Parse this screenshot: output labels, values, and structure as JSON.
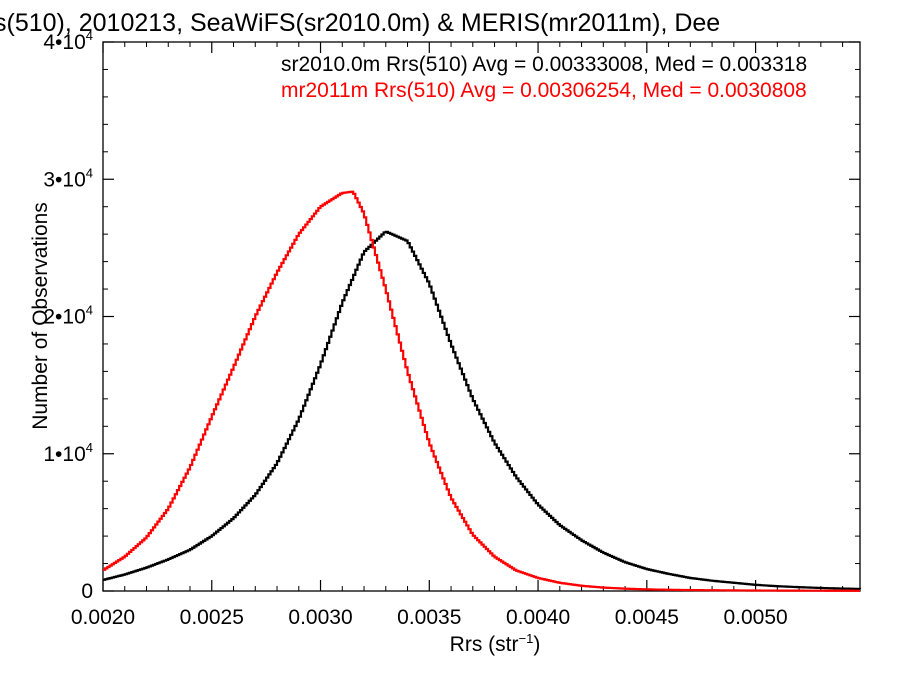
{
  "chart_data": {
    "type": "line",
    "title": "s(510), 2010213, SeaWiFS(sr2010.0m) & MERIS(mr2011m), Dee",
    "xlabel": "Rrs (str",
    "xlabel_sup": "−1",
    "xlabel_end": ")",
    "ylabel": "Number of Observations",
    "xlim": [
      0.002,
      0.00548
    ],
    "ylim": [
      0,
      40000
    ],
    "x_ticks": [
      0.002,
      0.0025,
      0.003,
      0.0035,
      0.004,
      0.0045,
      0.005
    ],
    "x_tick_labels": [
      "0.0020",
      "0.0025",
      "0.0030",
      "0.0035",
      "0.0040",
      "0.0045",
      "0.0050"
    ],
    "y_ticks": [
      0,
      10000,
      20000,
      30000,
      40000
    ],
    "y_tick_labels": [
      {
        "base": "0",
        "exp": ""
      },
      {
        "base": "1•10",
        "exp": "4"
      },
      {
        "base": "2•10",
        "exp": "4"
      },
      {
        "base": "3•10",
        "exp": "4"
      },
      {
        "base": "4•10",
        "exp": "4"
      }
    ],
    "grid": false,
    "legend_placement": "top-right",
    "legend": [
      {
        "text": "sr2010.0m Rrs(510) Avg = 0.00333008, Med = 0.003318",
        "color": "#000000"
      },
      {
        "text": "mr2011m Rrs(510) Avg = 0.00306254, Med = 0.0030808",
        "color": "#ff0000"
      }
    ],
    "series": [
      {
        "color": "#000000",
        "x": [
          0.002,
          0.0021,
          0.0022,
          0.0023,
          0.0024,
          0.0025,
          0.0026,
          0.0027,
          0.0028,
          0.0029,
          0.003,
          0.0031,
          0.0032,
          0.0033,
          0.0034,
          0.0035,
          0.0036,
          0.0037,
          0.0038,
          0.0039,
          0.004,
          0.0041,
          0.0042,
          0.0043,
          0.0044,
          0.0045,
          0.0046,
          0.0047,
          0.0048,
          0.0049,
          0.005,
          0.0051,
          0.0052,
          0.0053,
          0.0054,
          0.00548
        ],
        "values": [
          800,
          1200,
          1700,
          2300,
          3000,
          4000,
          5300,
          7000,
          9300,
          12500,
          16500,
          21000,
          24700,
          26200,
          25500,
          22400,
          18000,
          14000,
          10800,
          8300,
          6300,
          4800,
          3700,
          2800,
          2100,
          1600,
          1250,
          950,
          750,
          600,
          450,
          350,
          280,
          220,
          180,
          150
        ]
      },
      {
        "color": "#ff0000",
        "x": [
          0.002,
          0.0021,
          0.0022,
          0.0023,
          0.0024,
          0.0025,
          0.0026,
          0.0027,
          0.0028,
          0.0029,
          0.003,
          0.0031,
          0.00315,
          0.0032,
          0.0033,
          0.0034,
          0.0035,
          0.0036,
          0.0037,
          0.0038,
          0.0039,
          0.004,
          0.0041,
          0.0042,
          0.0043,
          0.0044,
          0.0045,
          0.0046,
          0.0047,
          0.0048,
          0.0049,
          0.005,
          0.0052,
          0.0054,
          0.00548
        ],
        "values": [
          1500,
          2500,
          3900,
          6000,
          9000,
          12700,
          16300,
          20000,
          23200,
          26000,
          28000,
          29000,
          29100,
          27500,
          22000,
          16000,
          10800,
          6800,
          4100,
          2500,
          1500,
          950,
          600,
          380,
          250,
          170,
          120,
          90,
          70,
          55,
          45,
          35,
          25,
          18,
          15
        ]
      }
    ]
  }
}
